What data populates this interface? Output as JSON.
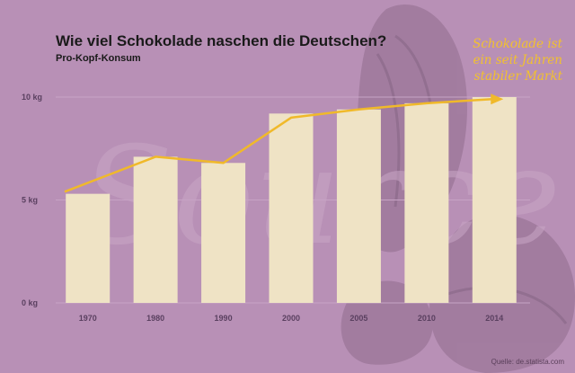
{
  "header": {
    "title": "Wie viel Schokolade naschen die Deutschen?",
    "subtitle": "Pro-Kopf-Konsum"
  },
  "annotation": {
    "lines": [
      "Schokolade ist",
      "ein seit Jahren",
      "stabiler Markt"
    ]
  },
  "watermark": "Source",
  "source": "Quelle: de.statista.com",
  "colors": {
    "background": "#b890b6",
    "bar": "#efe3c5",
    "line": "#f0b92a",
    "text": "#1a1a1a",
    "axis_text": "#5a4060"
  },
  "chart_data": {
    "type": "bar",
    "categories": [
      "1970",
      "1980",
      "1990",
      "2000",
      "2005",
      "2010",
      "2014"
    ],
    "values": [
      5.3,
      7.1,
      6.8,
      9.2,
      9.4,
      9.7,
      10.0
    ],
    "trend_line": [
      5.4,
      7.1,
      6.8,
      9.0,
      9.4,
      9.7,
      9.9
    ],
    "ylim": [
      0,
      10
    ],
    "y_ticks": [
      {
        "value": 0,
        "label": "0 kg"
      },
      {
        "value": 5,
        "label": "5 kg"
      },
      {
        "value": 10,
        "label": "10 kg"
      }
    ],
    "grid": true,
    "legend": "none"
  }
}
